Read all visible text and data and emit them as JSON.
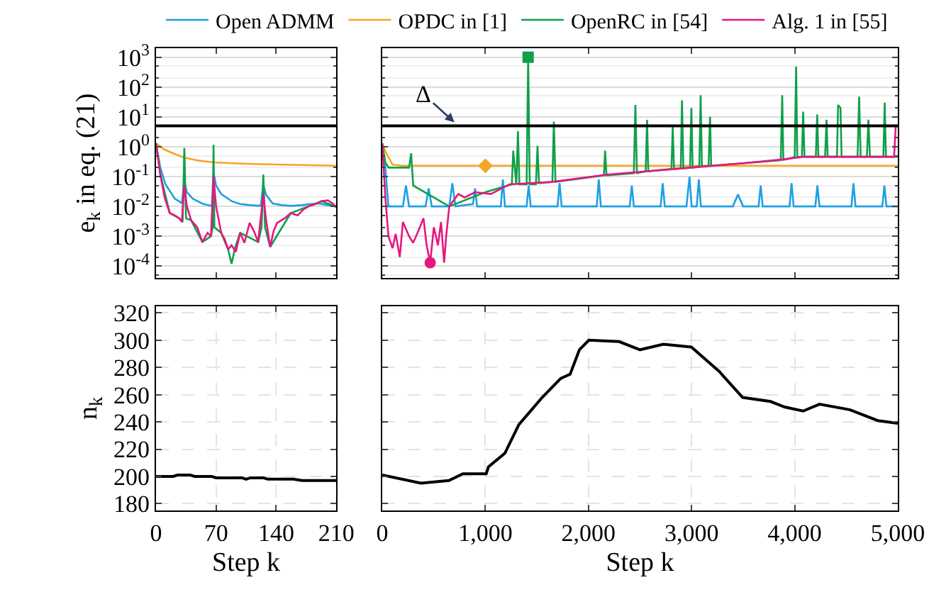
{
  "chart_data": [
    {
      "type": "line",
      "ylabel": "e$_{k}$ in eq. (21)",
      "log": "y",
      "grid": "y",
      "legend": "top",
      "tick_labels": "y",
      "line_style": "solid",
      "xlim": [
        0,
        210
      ],
      "xticks": [
        0,
        70,
        140,
        210
      ],
      "ylim": [
        4e-05,
        2000
      ],
      "yticks": [
        {
          "value": 0.0001,
          "label": "10$^{-4}$"
        },
        {
          "value": 0.001,
          "label": "10$^{-3}$"
        },
        {
          "value": 0.01,
          "label": "10$^{-2}$"
        },
        {
          "value": 0.1,
          "label": "10$^{-1}$"
        },
        {
          "value": 1,
          "label": "10$^{0}$"
        },
        {
          "value": 10,
          "label": "10$^{1}$"
        },
        {
          "value": 100,
          "label": "10$^{2}$"
        },
        {
          "value": 1000,
          "label": "10$^{3}$"
        }
      ],
      "ref_lines": [
        {
          "axis": "y",
          "value": 5,
          "color": "#000000"
        }
      ],
      "series": [
        {
          "name": "Open ADMM",
          "color": "#1ba1e2",
          "x": [
            0,
            5,
            11,
            22,
            30,
            33,
            36,
            43,
            55,
            65,
            67,
            70,
            76,
            88,
            98,
            110,
            122,
            125,
            128,
            136,
            147,
            157,
            170,
            180,
            190,
            200,
            210
          ],
          "values": [
            1.3,
            0.2,
            0.055,
            0.018,
            0.013,
            0.066,
            0.03,
            0.018,
            0.012,
            0.0104,
            0.14,
            0.05,
            0.026,
            0.015,
            0.012,
            0.011,
            0.0104,
            0.055,
            0.025,
            0.0125,
            0.011,
            0.0104,
            0.011,
            0.012,
            0.0125,
            0.011,
            0.0104
          ]
        },
        {
          "name": "OPDC in [1]",
          "color": "#f5a623",
          "x": [
            0,
            10,
            20,
            33,
            50,
            68,
            90,
            120,
            150,
            180,
            210
          ],
          "values": [
            1.3,
            0.8,
            0.6,
            0.43,
            0.34,
            0.3,
            0.28,
            0.26,
            0.25,
            0.24,
            0.23
          ]
        },
        {
          "name": "OpenRC in [54]",
          "color": "#0fa04a",
          "x": [
            0,
            5,
            16,
            27,
            31,
            33,
            35,
            41,
            54,
            64,
            66,
            67,
            68,
            76,
            84,
            88,
            92,
            98,
            119,
            123,
            125,
            127,
            133,
            157,
            179,
            193,
            210
          ],
          "values": [
            1.3,
            0.116,
            0.006,
            0.004,
            0.003,
            0.9,
            0.004,
            0.0034,
            0.00064,
            0.001,
            0.002,
            1.16,
            0.002,
            0.0013,
            0.00036,
            0.00012,
            0.0004,
            0.0013,
            0.00064,
            0.002,
            0.116,
            0.002,
            0.00044,
            0.006,
            0.0104,
            0.015,
            0.0095
          ]
        },
        {
          "name": "Alg. 1 in [55]",
          "color": "#e6177f",
          "x": [
            0,
            5,
            10,
            16,
            22,
            27,
            30,
            33,
            36,
            41,
            48,
            54,
            60,
            64,
            67,
            70,
            76,
            80,
            84,
            88,
            93,
            98,
            103,
            109,
            114,
            119,
            125,
            128,
            133,
            137,
            141,
            150,
            157,
            165,
            172,
            179,
            186,
            193,
            200,
            205,
            210
          ],
          "values": [
            1.3,
            0.116,
            0.02,
            0.006,
            0.005,
            0.004,
            0.003,
            0.05,
            0.01,
            0.0034,
            0.002,
            0.00064,
            0.0013,
            0.001,
            0.1,
            0.01,
            0.0013,
            0.0008,
            0.00036,
            0.0005,
            0.0003,
            0.0013,
            0.0006,
            0.0028,
            0.0015,
            0.00064,
            0.026,
            0.004,
            0.00044,
            0.0015,
            0.0028,
            0.004,
            0.006,
            0.005,
            0.008,
            0.0104,
            0.012,
            0.015,
            0.016,
            0.013,
            0.0095
          ]
        }
      ]
    },
    {
      "type": "line",
      "log": "y",
      "grid": "y",
      "tick_labels": false,
      "line_style": "solid",
      "xlim": [
        0,
        5000
      ],
      "xticks": [
        0,
        1000,
        2000,
        3000,
        4000,
        5000
      ],
      "ylim": [
        4e-05,
        2000
      ],
      "yticks": [
        0.0001,
        0.001,
        0.01,
        0.1,
        1,
        10,
        100,
        1000
      ],
      "ref_lines": [
        {
          "axis": "y",
          "value": 5,
          "label": "Δ",
          "color": "#000000"
        }
      ],
      "series": [
        {
          "color": "#1ba1e2",
          "x": [
            0,
            30,
            60,
            200,
            230,
            260,
            420,
            450,
            480,
            650,
            680,
            710,
            880,
            900,
            920,
            1150,
            1170,
            1190,
            1400,
            1420,
            1440,
            1700,
            1720,
            1740,
            2080,
            2100,
            2120,
            2400,
            2420,
            2440,
            2700,
            2720,
            2740,
            2950,
            2980,
            3000,
            3050,
            3070,
            3090,
            3400,
            3450,
            3500,
            3650,
            3670,
            3690,
            3950,
            3970,
            3990,
            4200,
            4220,
            4240,
            4550,
            4570,
            4590,
            4850,
            4870,
            4890,
            5000
          ],
          "values": [
            1.3,
            0.2,
            0.01,
            0.01,
            0.05,
            0.01,
            0.01,
            0.04,
            0.01,
            0.01,
            0.06,
            0.01,
            0.012,
            0.04,
            0.01,
            0.01,
            0.08,
            0.01,
            0.01,
            0.05,
            0.01,
            0.01,
            0.06,
            0.01,
            0.01,
            0.08,
            0.01,
            0.01,
            0.05,
            0.01,
            0.01,
            0.06,
            0.01,
            0.01,
            0.1,
            0.01,
            0.01,
            0.08,
            0.01,
            0.01,
            0.025,
            0.01,
            0.01,
            0.05,
            0.01,
            0.01,
            0.06,
            0.01,
            0.01,
            0.05,
            0.01,
            0.01,
            0.06,
            0.01,
            0.01,
            0.05,
            0.01,
            0.01
          ]
        },
        {
          "color": "#f5a623",
          "x": [
            0,
            40,
            100,
            200,
            1000,
            2000,
            3000,
            4000,
            5000
          ],
          "values": [
            1.3,
            0.6,
            0.25,
            0.23,
            0.23,
            0.23,
            0.23,
            0.23,
            0.23
          ]
        },
        {
          "color": "#0fa04a",
          "x": [
            0,
            30,
            60,
            260,
            280,
            300,
            650,
            1000,
            1257,
            1270,
            1300,
            1316,
            1330,
            1400,
            1415,
            1430,
            1490,
            1506,
            1520,
            1650,
            1664,
            1680,
            2150,
            2161,
            2175,
            2440,
            2455,
            2470,
            2555,
            2568,
            2580,
            2805,
            2817,
            2830,
            2895,
            2907,
            2920,
            2985,
            2998,
            3010,
            3075,
            3088,
            3100,
            3165,
            3179,
            3190,
            3865,
            3879,
            3890,
            4000,
            4014,
            4025,
            4070,
            4082,
            4095,
            4205,
            4218,
            4230,
            4295,
            4309,
            4320,
            4410,
            4421,
            4444,
            4455,
            4610,
            4625,
            4640,
            4700,
            4715,
            4730,
            4860,
            4873,
            4885,
            5000
          ],
          "values": [
            1.3,
            0.3,
            0.2,
            0.2,
            0.6,
            0.05,
            0.01,
            0.03,
            0.055,
            0.74,
            0.055,
            3.3,
            0.055,
            0.055,
            1000,
            0.055,
            0.055,
            1.08,
            0.06,
            0.066,
            6.9,
            0.066,
            0.11,
            0.74,
            0.11,
            0.13,
            25,
            0.13,
            0.15,
            8,
            0.15,
            0.18,
            4.8,
            0.18,
            0.19,
            36,
            0.19,
            0.2,
            20,
            0.2,
            0.22,
            53,
            0.22,
            0.23,
            10,
            0.23,
            0.35,
            53,
            0.36,
            0.45,
            490,
            0.45,
            0.46,
            15,
            0.46,
            0.46,
            12,
            0.46,
            0.46,
            8,
            0.46,
            0.46,
            25,
            20,
            0.46,
            0.46,
            48,
            0.46,
            0.46,
            8,
            0.46,
            0.46,
            30,
            0.46,
            0.46
          ]
        },
        {
          "color": "#e6177f",
          "x": [
            0,
            30,
            60,
            100,
            130,
            170,
            200,
            260,
            300,
            350,
            400,
            430,
            465,
            500,
            540,
            570,
            600,
            620,
            650,
            737,
            800,
            900,
            1053,
            1234,
            1641,
            2183,
            3000,
            3500,
            3900,
            4082,
            4500,
            4964,
            4980,
            5000
          ],
          "values": [
            1.3,
            0.02,
            0.001,
            0.0004,
            0.0012,
            0.0002,
            0.003,
            0.001,
            0.0006,
            0.0015,
            0.004,
            0.0005,
            0.00013,
            0.002,
            0.0005,
            0.003,
            0.00013,
            0.001,
            0.01,
            0.026,
            0.02,
            0.03,
            0.026,
            0.055,
            0.066,
            0.116,
            0.2,
            0.28,
            0.38,
            0.46,
            0.46,
            0.46,
            5,
            5
          ]
        },
        {
          "type": "scatter",
          "color": "#f5a623",
          "marker": "diamond",
          "x": [
            1000
          ],
          "values": [
            0.23
          ]
        },
        {
          "type": "scatter",
          "color": "#0fa04a",
          "marker": "square",
          "x": [
            1415
          ],
          "values": [
            1000
          ]
        },
        {
          "type": "scatter",
          "color": "#e6177f",
          "marker": "circle",
          "x": [
            465
          ],
          "values": [
            0.00013
          ]
        }
      ]
    },
    {
      "type": "line",
      "xlabel": "Step k",
      "ylabel": "n$_{k}$",
      "grid": true,
      "line_style": "solid",
      "xlim": [
        0,
        210
      ],
      "xticks": [
        0,
        70,
        140,
        210
      ],
      "ylim": [
        175,
        325
      ],
      "yticks": [
        180,
        200,
        220,
        240,
        260,
        280,
        300,
        320
      ],
      "series": [
        {
          "color": "#000000",
          "x": [
            0,
            20,
            25,
            40,
            45,
            65,
            70,
            100,
            105,
            110,
            125,
            130,
            160,
            170,
            210
          ],
          "values": [
            200,
            200,
            201,
            201,
            200,
            200,
            199,
            199,
            198,
            199,
            199,
            198,
            198,
            197,
            197
          ]
        }
      ]
    },
    {
      "type": "line",
      "xlabel": "Step k",
      "grid": true,
      "tick_labels": "x",
      "line_style": "solid",
      "xlim": [
        0,
        5000
      ],
      "xticks": [
        0,
        {
          "value": 1000,
          "label": "1,000"
        },
        {
          "value": 2000,
          "label": "2,000"
        },
        {
          "value": 3000,
          "label": "3,000"
        },
        {
          "value": 4000,
          "label": "4,000"
        },
        {
          "value": 5000,
          "label": "5,000"
        }
      ],
      "ylim": [
        175,
        325
      ],
      "yticks": [
        180,
        200,
        220,
        240,
        260,
        280,
        300,
        320
      ],
      "series": [
        {
          "color": "#000000",
          "x": [
            0,
            375,
            646,
            782,
            1008,
            1030,
            1189,
            1325,
            1551,
            1732,
            1822,
            1912,
            2003,
            2297,
            2500,
            2726,
            2998,
            3269,
            3495,
            3766,
            3902,
            4082,
            4240,
            4534,
            4806,
            5000
          ],
          "values": [
            201,
            195,
            197,
            202,
            202,
            207,
            217,
            238,
            258,
            272,
            275,
            293,
            300,
            299,
            293,
            297,
            295,
            277,
            258,
            255,
            251,
            248,
            253,
            249,
            241,
            239
          ]
        }
      ]
    }
  ]
}
